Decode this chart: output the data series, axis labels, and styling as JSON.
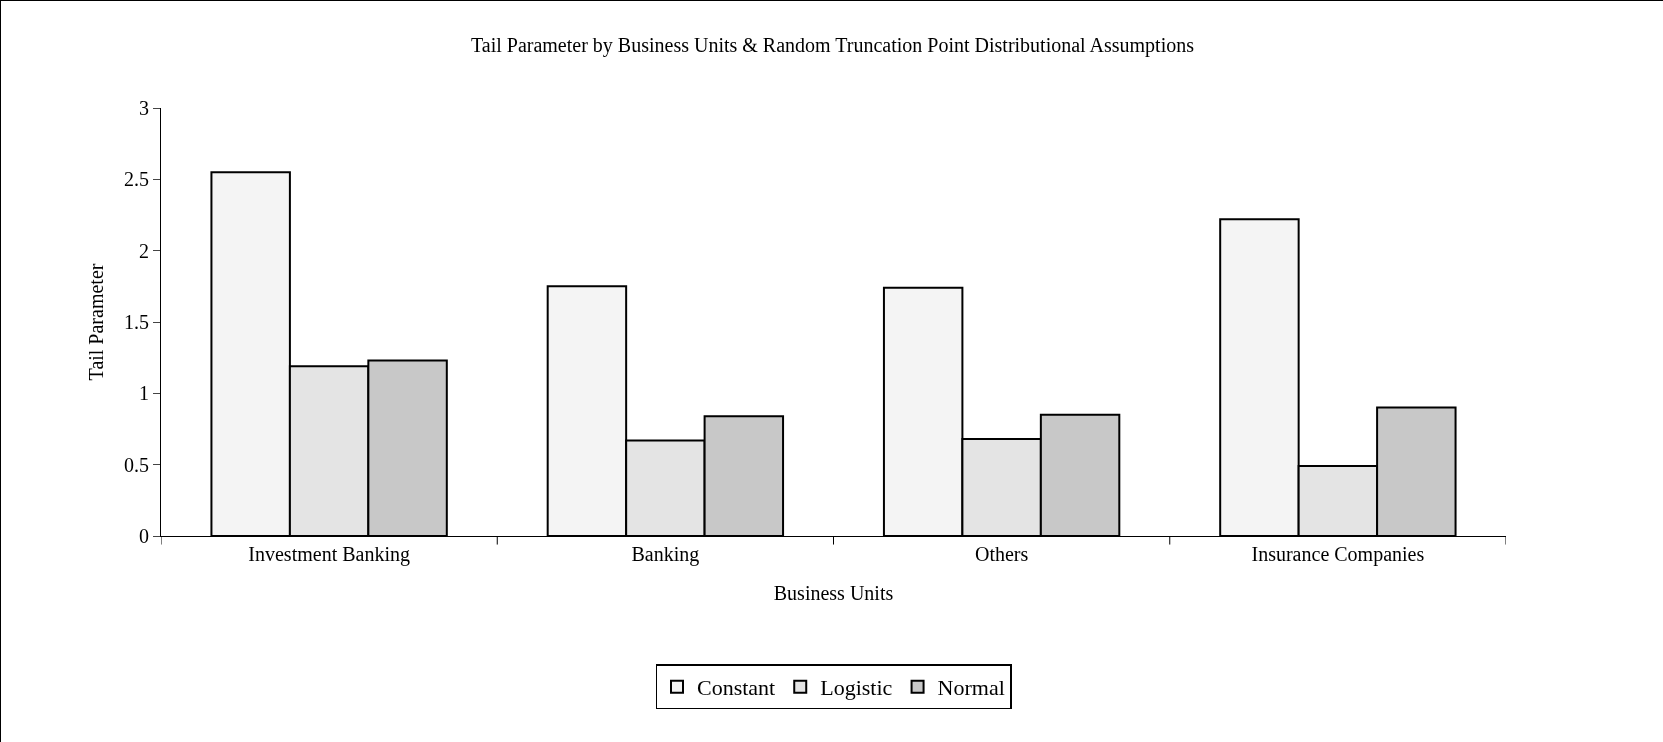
{
  "chart_data": {
    "type": "bar",
    "title": "Tail Parameter by Business Units & Random Truncation Point Distributional Assumptions",
    "xlabel": "Business Units",
    "ylabel": "Tail Parameter",
    "categories": [
      "Investment Banking",
      "Banking",
      "Others",
      "Insurance Companies"
    ],
    "series": [
      {
        "name": "Constant",
        "color": "#f4f4f4",
        "values": [
          2.55,
          1.75,
          1.74,
          2.22
        ]
      },
      {
        "name": "Logistic",
        "color": "#e4e4e4",
        "values": [
          1.19,
          0.67,
          0.68,
          0.49
        ]
      },
      {
        "name": "Normal",
        "color": "#c8c8c8",
        "values": [
          1.23,
          0.84,
          0.85,
          0.9
        ]
      }
    ],
    "ylim": [
      0,
      3
    ],
    "yticks": [
      0,
      0.5,
      1,
      1.5,
      2,
      2.5,
      3
    ],
    "grid": false,
    "legend": "bottom"
  }
}
